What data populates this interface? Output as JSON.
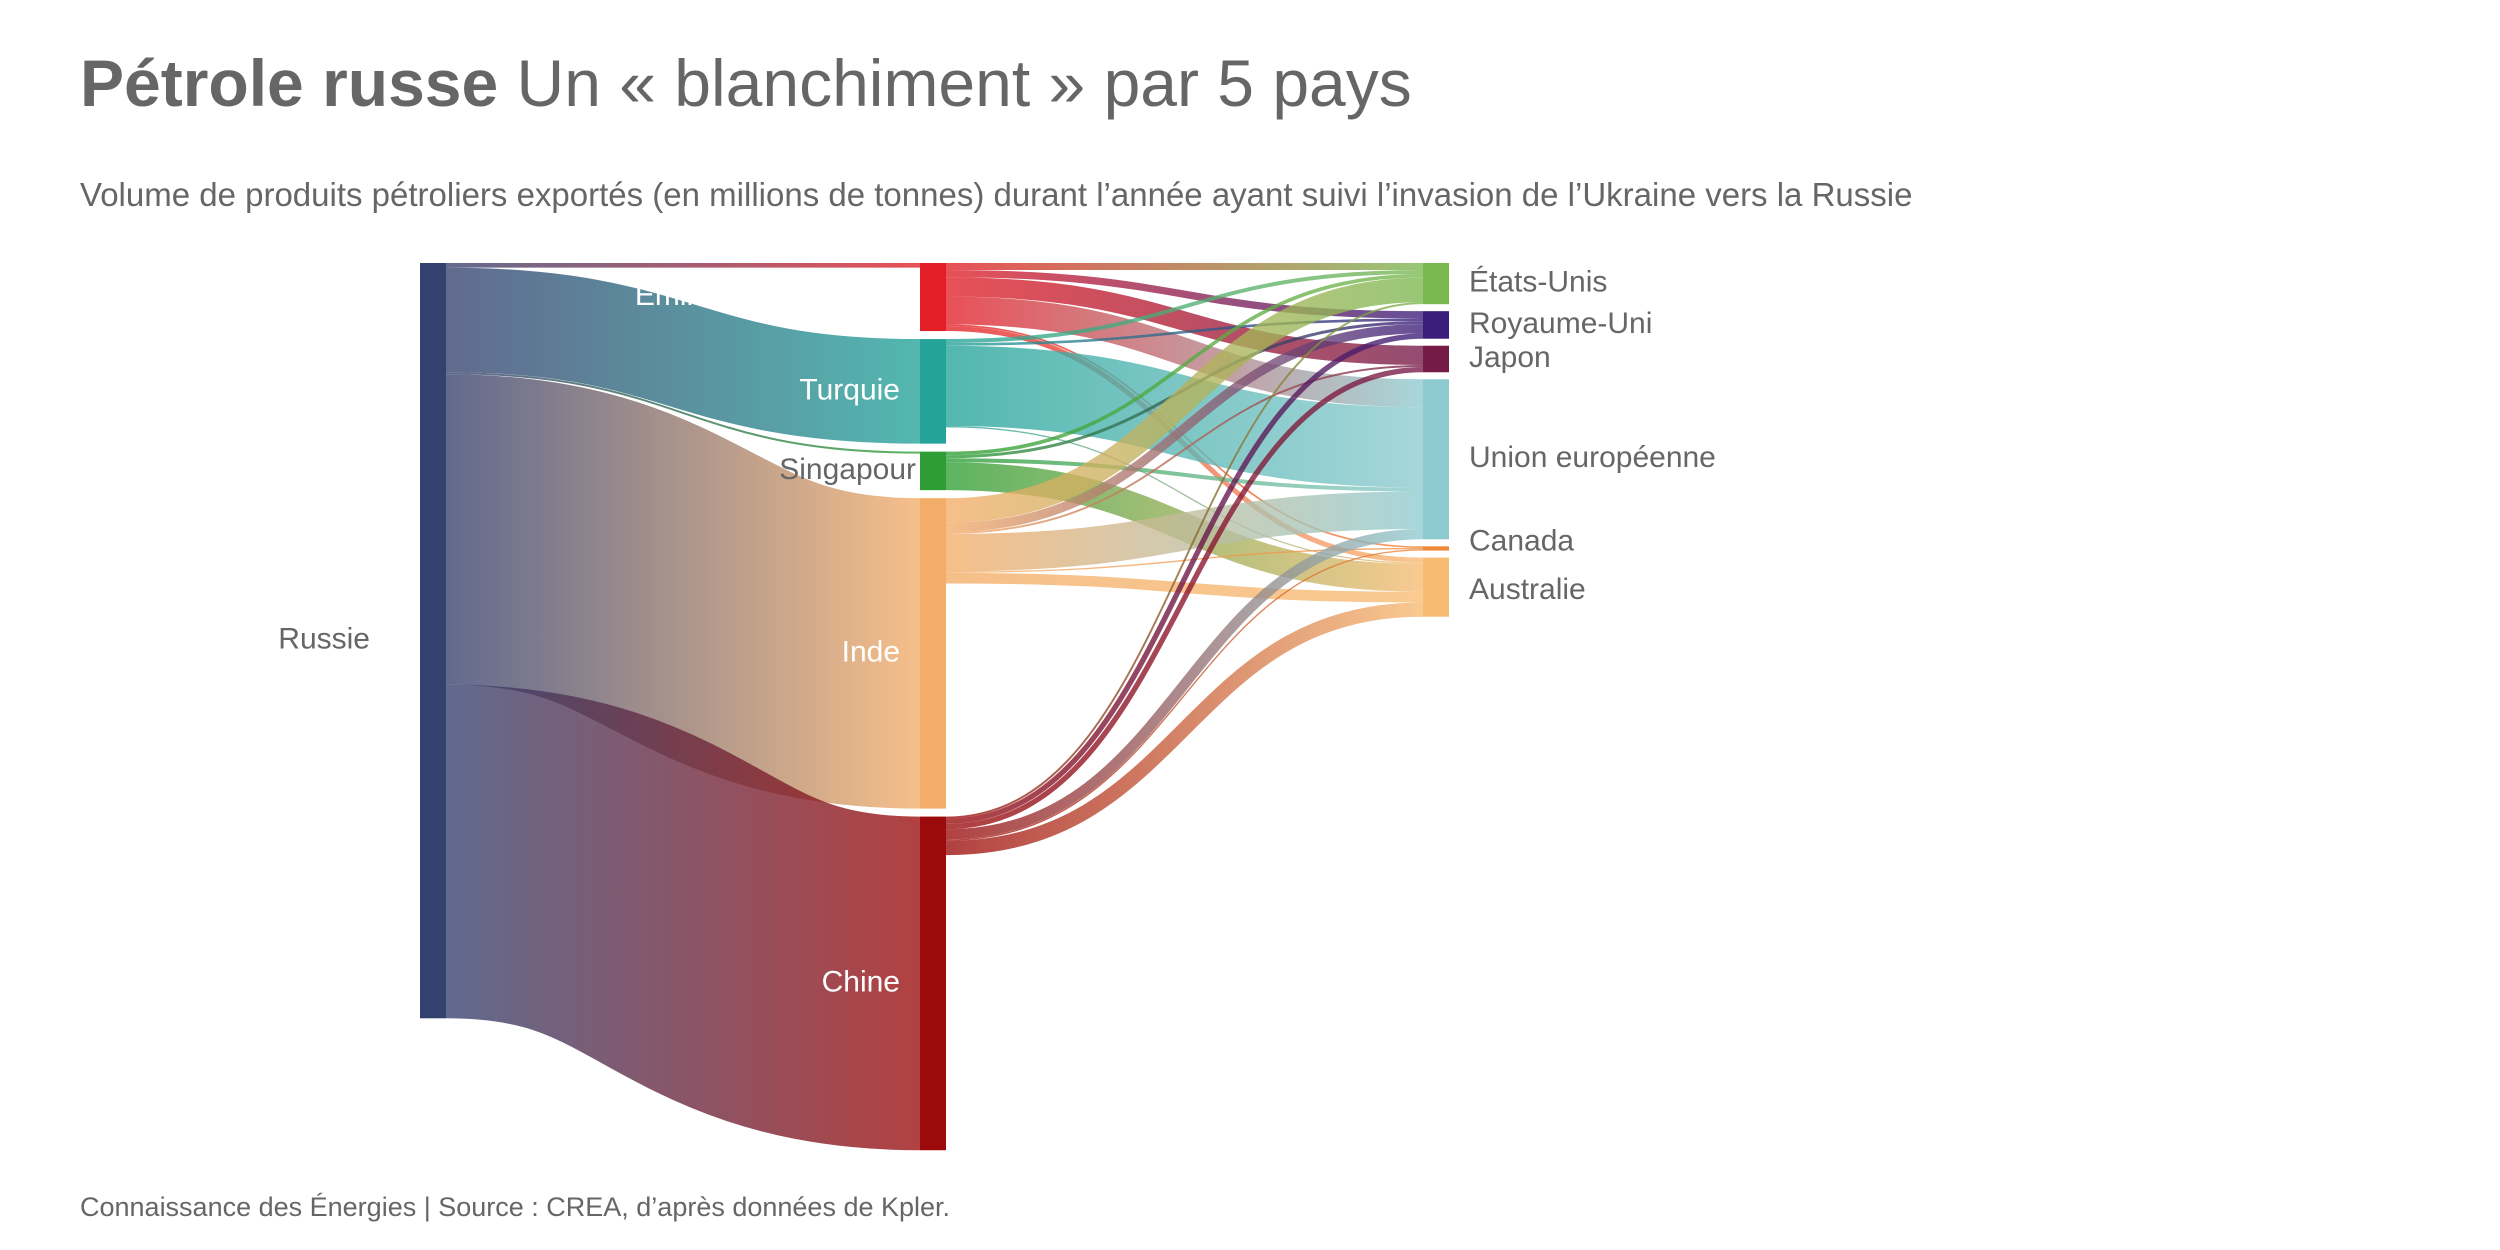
{
  "header": {
    "title_bold": "Pétrole russe",
    "title_rest": " Un « blanchiment » par 5 pays",
    "subtitle": "Volume de produits pétroliers exportés (en millions de tonnes) durant l’année ayant suivi l’invasion de l’Ukraine vers la Russie"
  },
  "footer": {
    "source": "Connaissance des Énergies | Source : CREA, d’après données de Kpler."
  },
  "nodes": [
    {
      "id": "russie",
      "label": "Russie",
      "color": "#34406e"
    },
    {
      "id": "emirats",
      "label": "Émirats arabes unis",
      "color": "#e21f26"
    },
    {
      "id": "turquie",
      "label": "Turquie",
      "color": "#23a399"
    },
    {
      "id": "singapour",
      "label": "Singapour",
      "color": "#2e9e34"
    },
    {
      "id": "inde",
      "label": "Inde",
      "color": "#f4ad68"
    },
    {
      "id": "chine",
      "label": "Chine",
      "color": "#9c0b0b"
    },
    {
      "id": "usa",
      "label": "États-Unis",
      "color": "#7ab84f"
    },
    {
      "id": "uk",
      "label": "Royaume-Uni",
      "color": "#3a1d7a"
    },
    {
      "id": "japon",
      "label": "Japon",
      "color": "#751b48"
    },
    {
      "id": "ue",
      "label": "Union européenne",
      "color": "#8ecbd0"
    },
    {
      "id": "canada",
      "label": "Canada",
      "color": "#ee8a3a"
    },
    {
      "id": "australie",
      "label": "Australie",
      "color": "#f7bb72"
    }
  ],
  "chart_data": {
    "type": "sankey",
    "unit": "millions de tonnes",
    "links": [
      {
        "source": "russie",
        "target": "emirats",
        "value": 1.4
      },
      {
        "source": "russie",
        "target": "turquie",
        "value": 31.5
      },
      {
        "source": "russie",
        "target": "singapour",
        "value": 0.6
      },
      {
        "source": "russie",
        "target": "inde",
        "value": 93.5
      },
      {
        "source": "russie",
        "target": "chine",
        "value": 100.5
      },
      {
        "source": "emirats",
        "target": "usa",
        "value": 2.1
      },
      {
        "source": "emirats",
        "target": "uk",
        "value": 2.2
      },
      {
        "source": "emirats",
        "target": "japon",
        "value": 5.8
      },
      {
        "source": "emirats",
        "target": "ue",
        "value": 8.4
      },
      {
        "source": "emirats",
        "target": "canada",
        "value": 0.5
      },
      {
        "source": "emirats",
        "target": "australie",
        "value": 1.5
      },
      {
        "source": "turquie",
        "target": "usa",
        "value": 1.2
      },
      {
        "source": "turquie",
        "target": "uk",
        "value": 0.8
      },
      {
        "source": "turquie",
        "target": "ue",
        "value": 24.2
      },
      {
        "source": "turquie",
        "target": "australie",
        "value": 0.4
      },
      {
        "source": "singapour",
        "target": "usa",
        "value": 1.1
      },
      {
        "source": "singapour",
        "target": "uk",
        "value": 0.9
      },
      {
        "source": "singapour",
        "target": "ue",
        "value": 1.2
      },
      {
        "source": "singapour",
        "target": "australie",
        "value": 8.4
      },
      {
        "source": "inde",
        "target": "usa",
        "value": 7.4
      },
      {
        "source": "inde",
        "target": "uk",
        "value": 2.8
      },
      {
        "source": "inde",
        "target": "japon",
        "value": 0.6
      },
      {
        "source": "inde",
        "target": "ue",
        "value": 11.3
      },
      {
        "source": "inde",
        "target": "canada",
        "value": 0.4
      },
      {
        "source": "inde",
        "target": "australie",
        "value": 3.2
      },
      {
        "source": "chine",
        "target": "usa",
        "value": 0.6
      },
      {
        "source": "chine",
        "target": "uk",
        "value": 1.6
      },
      {
        "source": "chine",
        "target": "japon",
        "value": 1.6
      },
      {
        "source": "chine",
        "target": "ue",
        "value": 3.1
      },
      {
        "source": "chine",
        "target": "canada",
        "value": 0.4
      },
      {
        "source": "chine",
        "target": "australie",
        "value": 4.3
      }
    ]
  }
}
